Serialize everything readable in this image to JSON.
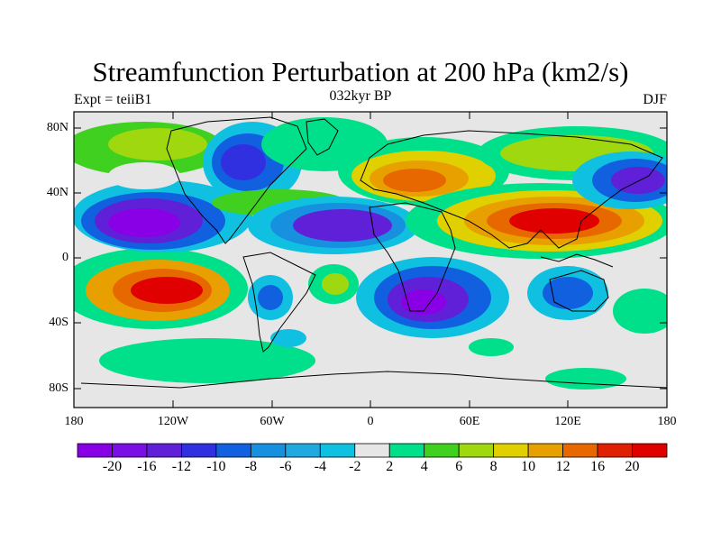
{
  "title": "Streamfunction Perturbation at 200 hPa (km2/s)",
  "subtitle_left": "Expt = teiiB1",
  "subtitle_center": "032kyr BP",
  "subtitle_right": "DJF",
  "lat_labels": [
    "80N",
    "40N",
    "0",
    "40S",
    "80S"
  ],
  "lon_labels": [
    "180",
    "120W",
    "60W",
    "0",
    "60E",
    "120E",
    "180"
  ],
  "colorbar": {
    "labels": [
      "-20",
      "-16",
      "-12",
      "-10",
      "-8",
      "-6",
      "-4",
      "-2",
      "2",
      "4",
      "6",
      "8",
      "10",
      "12",
      "16",
      "20"
    ],
    "colors": [
      "#8a00e6",
      "#7a10e6",
      "#6020d8",
      "#3030e0",
      "#1060e0",
      "#1890e0",
      "#20a8e0",
      "#10c0e0",
      "#e6e6e6",
      "#00e08a",
      "#40d020",
      "#a0d810",
      "#e0d000",
      "#e8a000",
      "#e86800",
      "#e02000",
      "#e00000"
    ]
  },
  "colors": {
    "background": "#e6e6e6",
    "coast": "#000000"
  }
}
